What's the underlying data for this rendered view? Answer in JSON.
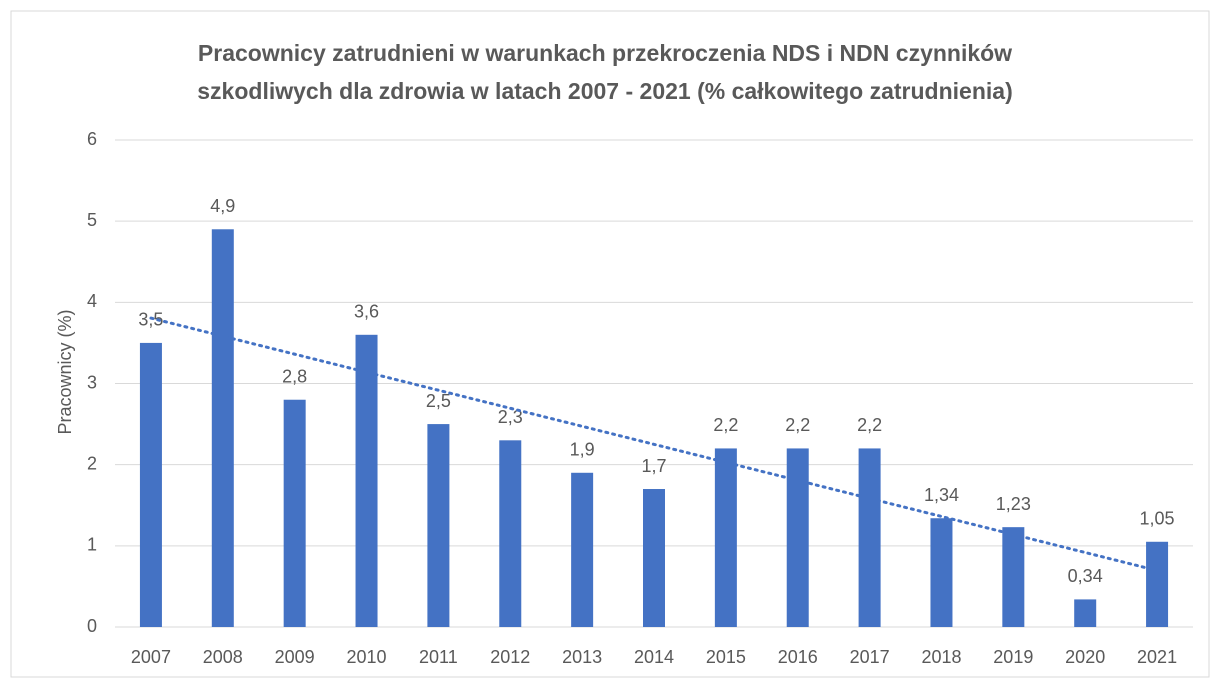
{
  "chart_data": {
    "type": "bar",
    "title": "Pracownicy zatrudnieni w warunkach przekroczenia NDS i NDN czynników szkodliwych dla zdrowia w latach 2007 - 2021 (% całkowitego zatrudnienia)",
    "ylabel": "Pracownicy (%)",
    "categories": [
      "2007",
      "2008",
      "2009",
      "2010",
      "2011",
      "2012",
      "2013",
      "2014",
      "2015",
      "2016",
      "2017",
      "2018",
      "2019",
      "2020",
      "2021"
    ],
    "values": [
      3.5,
      4.9,
      2.8,
      3.6,
      2.5,
      2.3,
      1.9,
      1.7,
      2.2,
      2.2,
      2.2,
      1.34,
      1.23,
      0.34,
      1.05
    ],
    "value_labels": [
      "3,5",
      "4,9",
      "2,8",
      "3,6",
      "2,5",
      "2,3",
      "1,9",
      "1,7",
      "2,2",
      "2,2",
      "2,2",
      "1,34",
      "1,23",
      "0,34",
      "1,05"
    ],
    "color": "#4472c4",
    "trendline": "linear",
    "ylim": [
      0,
      6
    ],
    "yticks": [
      0,
      1,
      2,
      3,
      4,
      5,
      6
    ],
    "grid": true
  }
}
